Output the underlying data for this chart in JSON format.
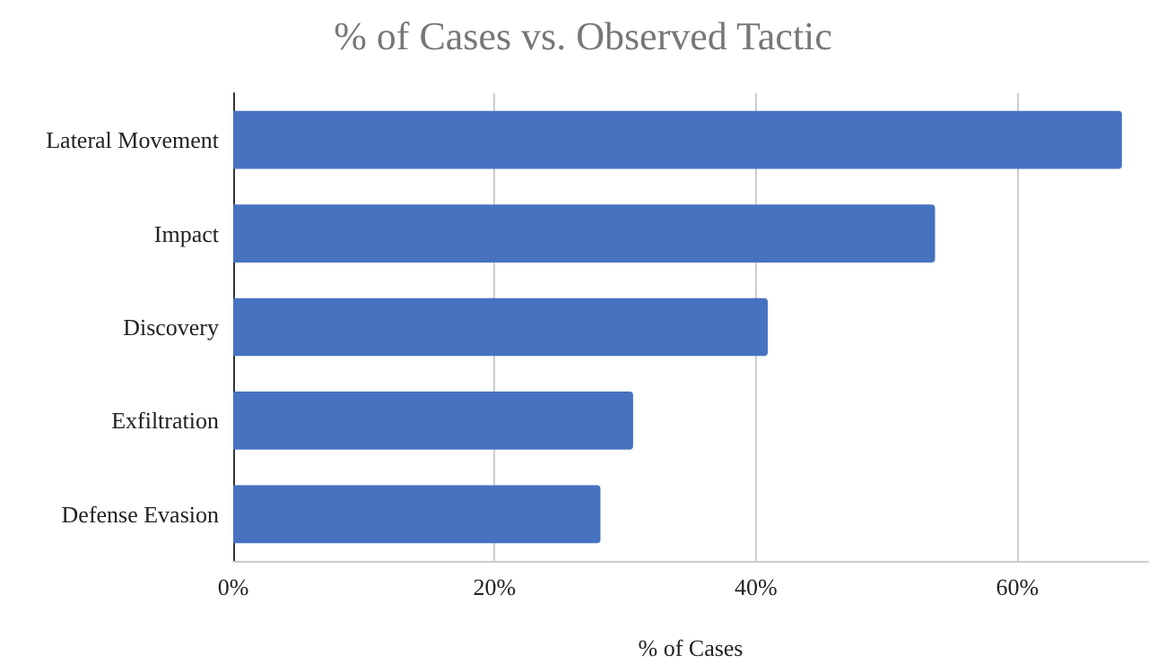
{
  "chart_data": {
    "type": "bar",
    "orientation": "horizontal",
    "title": "% of Cases vs. Observed Tactic",
    "xlabel": "% of Cases",
    "categories": [
      "Lateral Movement",
      "Impact",
      "Discovery",
      "Exfiltration",
      "Defense Evasion"
    ],
    "values": [
      68,
      53.7,
      40.9,
      30.6,
      28.1
    ],
    "color": "#4672c0",
    "xlim": [
      0,
      70
    ],
    "xticks": [
      {
        "value": 0,
        "label": "0%"
      },
      {
        "value": 20,
        "label": "20%"
      },
      {
        "value": 40,
        "label": "40%"
      },
      {
        "value": 60,
        "label": "60%"
      }
    ],
    "grid": "x"
  }
}
